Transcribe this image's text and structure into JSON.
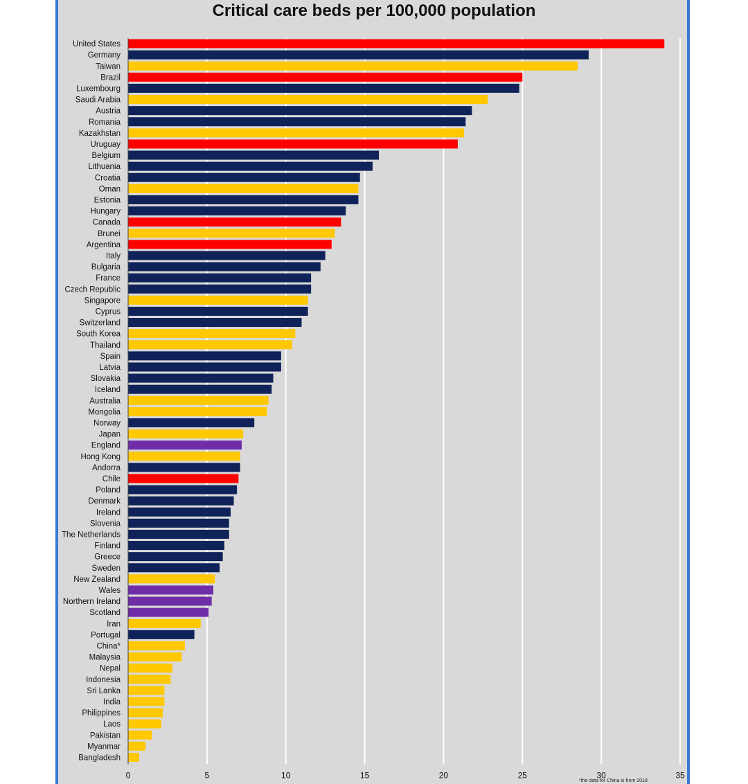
{
  "chart_data": {
    "type": "bar",
    "orientation": "horizontal",
    "title": "Critical care beds per 100,000 population",
    "footnote": "*the data for China is from 2018",
    "xlim": [
      0,
      35
    ],
    "xticks": [
      0,
      5,
      10,
      15,
      20,
      25,
      30,
      35
    ],
    "grid": "vertical",
    "colors": {
      "americas": "#ff0000",
      "europe": "#0f2259",
      "asia": "#ffc800",
      "uk": "#6f2da8",
      "background": "#d9d9d9",
      "gridline": "#ffffff"
    },
    "bars": [
      {
        "label": "United States",
        "value": 34.0,
        "group": "americas"
      },
      {
        "label": "Germany",
        "value": 29.2,
        "group": "europe"
      },
      {
        "label": "Taiwan",
        "value": 28.5,
        "group": "asia"
      },
      {
        "label": "Brazil",
        "value": 25.0,
        "group": "americas"
      },
      {
        "label": "Luxembourg",
        "value": 24.8,
        "group": "europe"
      },
      {
        "label": "Saudi Arabia",
        "value": 22.8,
        "group": "asia"
      },
      {
        "label": "Austria",
        "value": 21.8,
        "group": "europe"
      },
      {
        "label": "Romania",
        "value": 21.4,
        "group": "europe"
      },
      {
        "label": "Kazakhstan",
        "value": 21.3,
        "group": "asia"
      },
      {
        "label": "Uruguay",
        "value": 20.9,
        "group": "americas"
      },
      {
        "label": "Belgium",
        "value": 15.9,
        "group": "europe"
      },
      {
        "label": "Lithuania",
        "value": 15.5,
        "group": "europe"
      },
      {
        "label": "Croatia",
        "value": 14.7,
        "group": "europe"
      },
      {
        "label": "Oman",
        "value": 14.6,
        "group": "asia"
      },
      {
        "label": "Estonia",
        "value": 14.6,
        "group": "europe"
      },
      {
        "label": "Hungary",
        "value": 13.8,
        "group": "europe"
      },
      {
        "label": "Canada",
        "value": 13.5,
        "group": "americas"
      },
      {
        "label": "Brunei",
        "value": 13.1,
        "group": "asia"
      },
      {
        "label": "Argentina",
        "value": 12.9,
        "group": "americas"
      },
      {
        "label": "Italy",
        "value": 12.5,
        "group": "europe"
      },
      {
        "label": "Bulgaria",
        "value": 12.2,
        "group": "europe"
      },
      {
        "label": "France",
        "value": 11.6,
        "group": "europe"
      },
      {
        "label": "Czech Republic",
        "value": 11.6,
        "group": "europe"
      },
      {
        "label": "Singapore",
        "value": 11.4,
        "group": "asia"
      },
      {
        "label": "Cyprus",
        "value": 11.4,
        "group": "europe"
      },
      {
        "label": "Switzerland",
        "value": 11.0,
        "group": "europe"
      },
      {
        "label": "South Korea",
        "value": 10.6,
        "group": "asia"
      },
      {
        "label": "Thailand",
        "value": 10.4,
        "group": "asia"
      },
      {
        "label": "Spain",
        "value": 9.7,
        "group": "europe"
      },
      {
        "label": "Latvia",
        "value": 9.7,
        "group": "europe"
      },
      {
        "label": "Slovakia",
        "value": 9.2,
        "group": "europe"
      },
      {
        "label": "Iceland",
        "value": 9.1,
        "group": "europe"
      },
      {
        "label": "Australia",
        "value": 8.9,
        "group": "asia"
      },
      {
        "label": "Mongolia",
        "value": 8.8,
        "group": "asia"
      },
      {
        "label": "Norway",
        "value": 8.0,
        "group": "europe"
      },
      {
        "label": "Japan",
        "value": 7.3,
        "group": "asia"
      },
      {
        "label": "England",
        "value": 7.2,
        "group": "uk"
      },
      {
        "label": "Hong Kong",
        "value": 7.1,
        "group": "asia"
      },
      {
        "label": "Andorra",
        "value": 7.1,
        "group": "europe"
      },
      {
        "label": "Chile",
        "value": 7.0,
        "group": "americas"
      },
      {
        "label": "Poland",
        "value": 6.9,
        "group": "europe"
      },
      {
        "label": "Denmark",
        "value": 6.7,
        "group": "europe"
      },
      {
        "label": "Ireland",
        "value": 6.5,
        "group": "europe"
      },
      {
        "label": "Slovenia",
        "value": 6.4,
        "group": "europe"
      },
      {
        "label": "The Netherlands",
        "value": 6.4,
        "group": "europe"
      },
      {
        "label": "Finland",
        "value": 6.1,
        "group": "europe"
      },
      {
        "label": "Greece",
        "value": 6.0,
        "group": "europe"
      },
      {
        "label": "Sweden",
        "value": 5.8,
        "group": "europe"
      },
      {
        "label": "New Zealand",
        "value": 5.5,
        "group": "asia"
      },
      {
        "label": "Wales",
        "value": 5.4,
        "group": "uk"
      },
      {
        "label": "Northern Ireland",
        "value": 5.3,
        "group": "uk"
      },
      {
        "label": "Scotland",
        "value": 5.1,
        "group": "uk"
      },
      {
        "label": "Iran",
        "value": 4.6,
        "group": "asia"
      },
      {
        "label": "Portugal",
        "value": 4.2,
        "group": "europe"
      },
      {
        "label": "China*",
        "value": 3.6,
        "group": "asia"
      },
      {
        "label": "Malaysia",
        "value": 3.4,
        "group": "asia"
      },
      {
        "label": "Nepal",
        "value": 2.8,
        "group": "asia"
      },
      {
        "label": "Indonesia",
        "value": 2.7,
        "group": "asia"
      },
      {
        "label": "Sri Lanka",
        "value": 2.3,
        "group": "asia"
      },
      {
        "label": "India",
        "value": 2.3,
        "group": "asia"
      },
      {
        "label": "Philippines",
        "value": 2.2,
        "group": "asia"
      },
      {
        "label": "Laos",
        "value": 2.1,
        "group": "asia"
      },
      {
        "label": "Pakistan",
        "value": 1.5,
        "group": "asia"
      },
      {
        "label": "Myanmar",
        "value": 1.1,
        "group": "asia"
      },
      {
        "label": "Bangladesh",
        "value": 0.7,
        "group": "asia"
      }
    ]
  }
}
